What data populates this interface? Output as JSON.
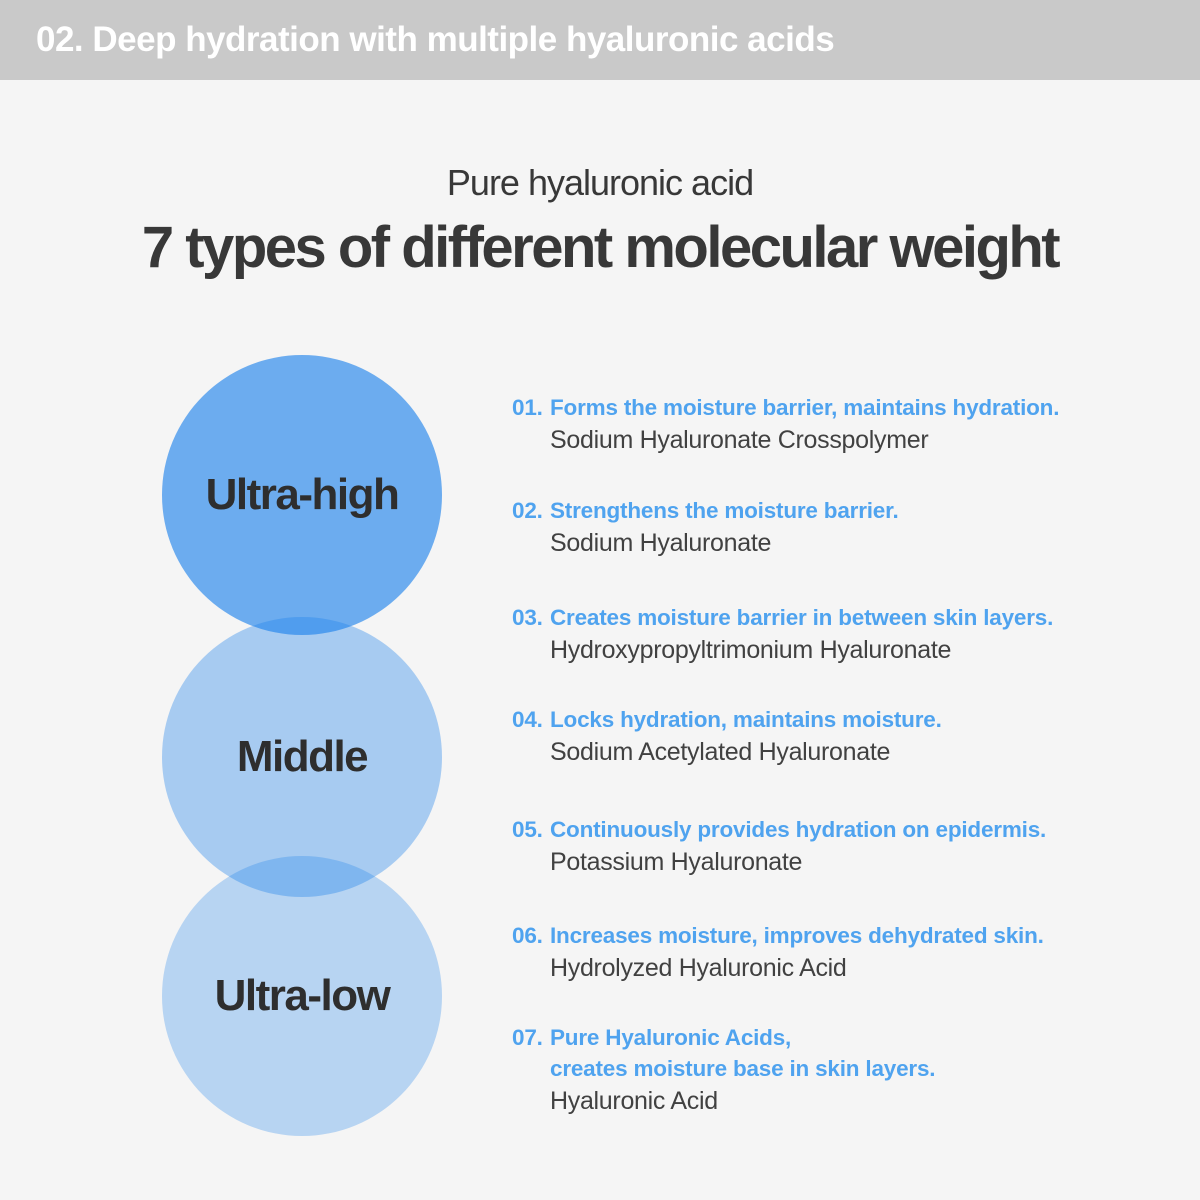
{
  "header": {
    "label": "02. Deep hydration with multiple hyaluronic acids"
  },
  "title": {
    "subtitle": "Pure hyaluronic acid",
    "heading": "7 types of different molecular weight"
  },
  "weights": [
    {
      "label": "Ultra-high",
      "color": "rgba(30,130,235,0.64)"
    },
    {
      "label": "Middle",
      "color": "rgba(30,130,235,0.36)"
    },
    {
      "label": "Ultra-low",
      "color": "rgba(30,130,235,0.29)"
    }
  ],
  "items": [
    {
      "num": "01.",
      "title": "Forms the moisture barrier, maintains hydration.",
      "ingredient": "Sodium Hyaluronate Crosspolymer"
    },
    {
      "num": "02.",
      "title": "Strengthens the moisture barrier.",
      "ingredient": "Sodium Hyaluronate"
    },
    {
      "num": "03.",
      "title": "Creates moisture barrier in between skin layers.",
      "ingredient": "Hydroxypropyltrimonium Hyaluronate"
    },
    {
      "num": "04.",
      "title": "Locks hydration, maintains moisture.",
      "ingredient": "Sodium Acetylated Hyaluronate"
    },
    {
      "num": "05.",
      "title": "Continuously provides hydration on epidermis.",
      "ingredient": "Potassium Hyaluronate"
    },
    {
      "num": "06.",
      "title": "Increases moisture, improves dehydrated skin.",
      "ingredient": "Hydrolyzed Hyaluronic Acid"
    },
    {
      "num": "07.",
      "title": "Pure Hyaluronic Acids,",
      "title_line2": "creates moisture base in skin layers.",
      "ingredient": "Hyaluronic Acid"
    }
  ],
  "colors": {
    "page_bg": "#F5F5F5",
    "header_bg": "#C9C9C9",
    "header_text": "#FFFFFF",
    "accent_blue": "#4FA3EF",
    "title_text": "#383838",
    "body_text": "#414141",
    "circle_label_text": "#2E2E2E"
  }
}
